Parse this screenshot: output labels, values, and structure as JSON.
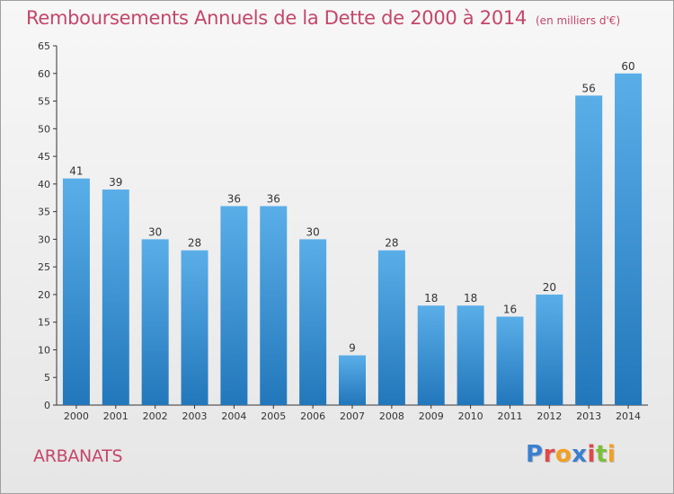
{
  "chart_data": {
    "type": "bar",
    "title": "Remboursements Annuels de la Dette de 2000 à 2014",
    "unit_note": "(en milliers d'€)",
    "categories": [
      "2000",
      "2001",
      "2002",
      "2003",
      "2004",
      "2005",
      "2006",
      "2007",
      "2008",
      "2009",
      "2010",
      "2011",
      "2012",
      "2013",
      "2014"
    ],
    "values": [
      41,
      39,
      30,
      28,
      36,
      36,
      30,
      9,
      28,
      18,
      18,
      16,
      20,
      56,
      60
    ],
    "ylim": [
      0,
      65
    ],
    "yticks": [
      0,
      5,
      10,
      15,
      20,
      25,
      30,
      35,
      40,
      45,
      50,
      55,
      60,
      65
    ],
    "xlabel": "",
    "ylabel": "",
    "grid": false,
    "bar_color_top": "#5aaee8",
    "bar_color_bottom": "#2277bb"
  },
  "footer": {
    "commune": "ARBANATS",
    "logo_letters": [
      {
        "ch": "P",
        "color": "#3a7fd0"
      },
      {
        "ch": "r",
        "color": "#e04848"
      },
      {
        "ch": "o",
        "color": "#f2a020"
      },
      {
        "ch": "x",
        "color": "#3a7fd0"
      },
      {
        "ch": "i",
        "color": "#e04848"
      },
      {
        "ch": "t",
        "color": "#7bbf3a"
      },
      {
        "ch": "i",
        "color": "#f2a020"
      }
    ]
  },
  "colors": {
    "title": "#c4466a",
    "axis": "#333333"
  }
}
